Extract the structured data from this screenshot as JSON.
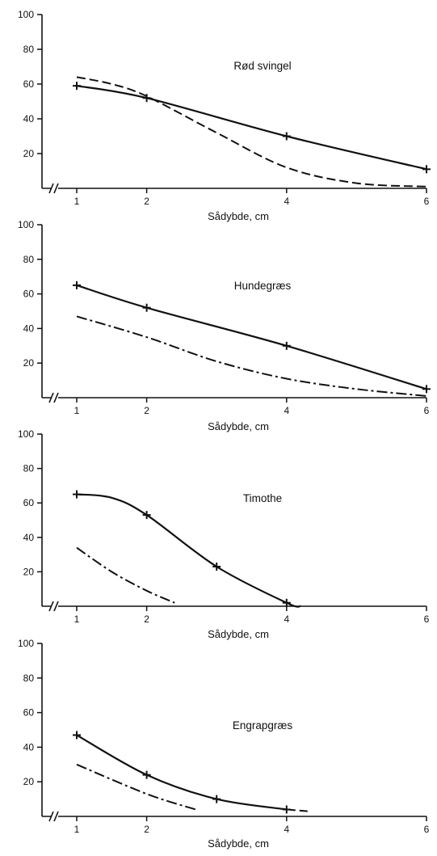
{
  "chart_data": [
    {
      "type": "line",
      "title": "Rød svingel",
      "xlabel": "Sådybde, cm",
      "ylabel": "",
      "x_ticks": [
        1,
        2,
        4,
        6
      ],
      "y_ticks": [
        20,
        40,
        60,
        80,
        100
      ],
      "xlim": [
        0.6,
        6
      ],
      "ylim": [
        0,
        100
      ],
      "grid": false,
      "axis_break": true,
      "series": [
        {
          "style": "solid",
          "markers": "plus",
          "points": [
            [
              1,
              59
            ],
            [
              2,
              52
            ],
            [
              4,
              30
            ],
            [
              6,
              11
            ]
          ]
        },
        {
          "style": "dashed",
          "markers": "none",
          "points": [
            [
              1,
              64
            ],
            [
              1.5,
              60
            ],
            [
              2,
              53
            ],
            [
              3,
              32
            ],
            [
              4,
              12
            ],
            [
              5,
              3
            ],
            [
              6,
              1
            ]
          ]
        }
      ]
    },
    {
      "type": "line",
      "title": "Hundegræs",
      "xlabel": "Sådybde, cm",
      "ylabel": "",
      "x_ticks": [
        1,
        2,
        4,
        6
      ],
      "y_ticks": [
        20,
        40,
        60,
        80,
        100
      ],
      "xlim": [
        0.6,
        6
      ],
      "ylim": [
        0,
        100
      ],
      "grid": false,
      "axis_break": true,
      "series": [
        {
          "style": "solid",
          "markers": "plus",
          "points": [
            [
              1,
              65
            ],
            [
              2,
              52
            ],
            [
              4,
              30
            ],
            [
              6,
              5
            ]
          ]
        },
        {
          "style": "dash-dot",
          "markers": "none",
          "points": [
            [
              1,
              47
            ],
            [
              2,
              35
            ],
            [
              3,
              21
            ],
            [
              4,
              11
            ],
            [
              5,
              5
            ],
            [
              6,
              1
            ]
          ]
        }
      ]
    },
    {
      "type": "line",
      "title": "Timothe",
      "xlabel": "Sådybde, cm",
      "ylabel": "",
      "x_ticks": [
        1,
        2,
        4,
        6
      ],
      "y_ticks": [
        20,
        40,
        60,
        80,
        100
      ],
      "xlim": [
        0.6,
        6
      ],
      "ylim": [
        0,
        100
      ],
      "grid": false,
      "axis_break": true,
      "series": [
        {
          "style": "solid",
          "markers": "plus",
          "points": [
            [
              1,
              65
            ],
            [
              1.5,
              63
            ],
            [
              2,
              53
            ],
            [
              3,
              23
            ],
            [
              4,
              2
            ],
            [
              4.2,
              0
            ]
          ]
        },
        {
          "style": "dash-dot",
          "markers": "none",
          "points": [
            [
              1,
              34
            ],
            [
              1.5,
              20
            ],
            [
              2,
              9
            ],
            [
              2.4,
              2
            ]
          ]
        }
      ]
    },
    {
      "type": "line",
      "title": "Engrapgræs",
      "xlabel": "Sådybde, cm",
      "ylabel": "",
      "x_ticks": [
        1,
        2,
        4,
        6
      ],
      "y_ticks": [
        20,
        40,
        60,
        80,
        100
      ],
      "xlim": [
        0.6,
        6
      ],
      "ylim": [
        0,
        100
      ],
      "grid": false,
      "axis_break": true,
      "series": [
        {
          "style": "solid",
          "markers": "plus",
          "points": [
            [
              1,
              47
            ],
            [
              2,
              24
            ],
            [
              3,
              10
            ],
            [
              4,
              4
            ]
          ]
        },
        {
          "style": "dashed",
          "markers": "none",
          "points": [
            [
              4,
              4
            ],
            [
              4.3,
              3
            ]
          ]
        },
        {
          "style": "dash-dot",
          "markers": "none",
          "points": [
            [
              1,
              30
            ],
            [
              2,
              13
            ],
            [
              2.7,
              4
            ]
          ]
        }
      ]
    }
  ]
}
